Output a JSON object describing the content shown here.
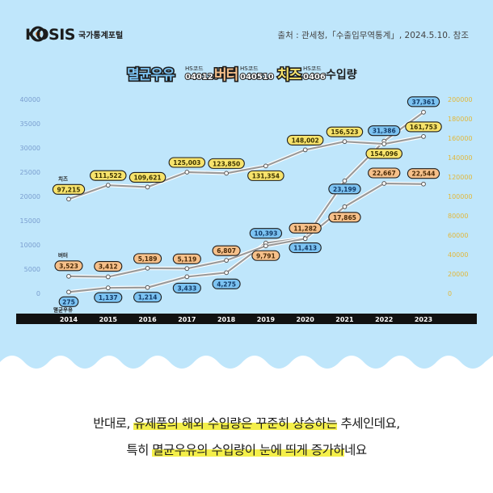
{
  "header": {
    "logo_text": "KOSIS",
    "logo_sub": "국가통계포털",
    "source": "출처 : 관세청,「수출입무역통계」, 2024.5.10. 참조"
  },
  "legend": {
    "items": [
      {
        "name": "멸균우유",
        "code_label": "HS코드",
        "code": "040120",
        "color": "#7cc3f2"
      },
      {
        "name": "버터",
        "code_label": "HS코드",
        "code": "040510",
        "color": "#f6c08a"
      },
      {
        "name": "치즈",
        "code_label": "HS코드",
        "code": "0406",
        "color": "#f7e36c"
      }
    ],
    "suffix": "수입량"
  },
  "chart_data": {
    "type": "line",
    "x": [
      "2014",
      "2015",
      "2016",
      "2017",
      "2018",
      "2019",
      "2020",
      "2021",
      "2022",
      "2023"
    ],
    "left_axis": {
      "ticks": [
        "40000",
        "35000",
        "30000",
        "25000",
        "20000",
        "15000",
        "10000",
        "5000",
        "0"
      ],
      "range": [
        0,
        40000
      ]
    },
    "right_axis": {
      "ticks": [
        "200000",
        "180000",
        "160000",
        "140000",
        "120000",
        "100000",
        "80000",
        "60000",
        "40000",
        "20000",
        "0"
      ],
      "range": [
        0,
        200000
      ]
    },
    "series": [
      {
        "name": "멸균우유",
        "axis": "left",
        "values": [
          275,
          1137,
          1214,
          3433,
          4275,
          10393,
          11413,
          23199,
          31386,
          37361
        ],
        "labels": [
          "275",
          "1,137",
          "1,214",
          "3,433",
          "4,275",
          "10,393",
          "11,413",
          "23,199",
          "31,386",
          "37,361"
        ]
      },
      {
        "name": "버터",
        "axis": "left",
        "values": [
          3523,
          3412,
          5189,
          5119,
          6807,
          9791,
          11282,
          17865,
          22667,
          22544
        ],
        "labels": [
          "3,523",
          "3,412",
          "5,189",
          "5,119",
          "6,807",
          "9,791",
          "11,282",
          "17,865",
          "22,667",
          "22,544"
        ]
      },
      {
        "name": "치즈",
        "axis": "right",
        "values": [
          97215,
          111522,
          109621,
          125003,
          123850,
          131354,
          148002,
          156523,
          154096,
          161753
        ],
        "labels": [
          "97,215",
          "111,522",
          "109,621",
          "125,003",
          "123,850",
          "131,354",
          "148,002",
          "156,523",
          "154,096",
          "161,753"
        ]
      }
    ]
  },
  "caption": {
    "line1_pre": "반대로, ",
    "line1_hl": "유제품의 해외 수입량은 꾸준히 상승하는",
    "line1_post": " 추세인데요,",
    "line2_pre": "특히 ",
    "line2_hl": "멸균우유의 수입량이 눈에 띄게 증가하",
    "line2_post": "네요"
  }
}
